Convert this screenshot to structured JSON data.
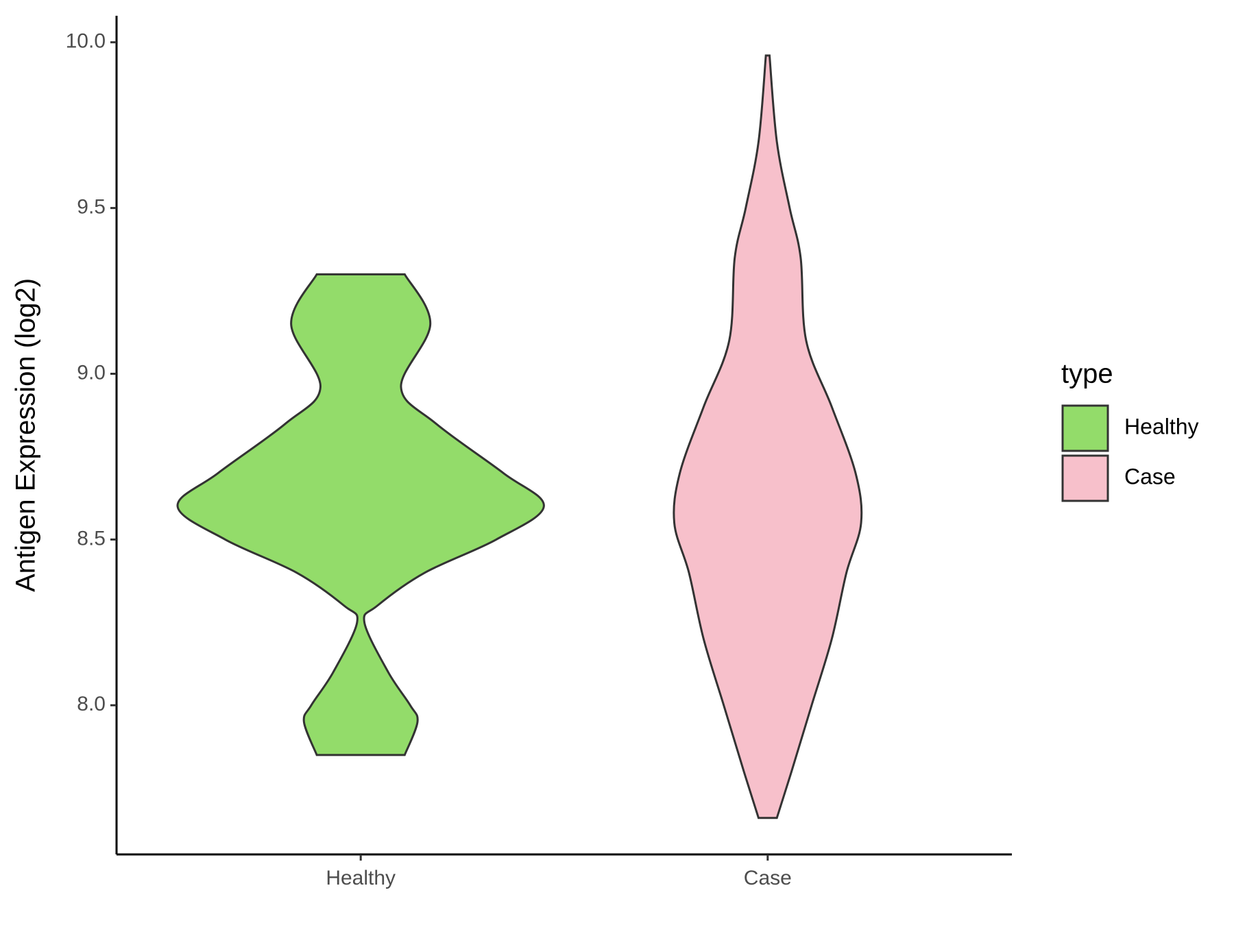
{
  "chart_data": {
    "type": "violin",
    "y_axis_label": "Antigen Expression (log2)",
    "categories": [
      "Healthy",
      "Case"
    ],
    "legend_title": "type",
    "ylim": [
      7.55,
      10.08
    ],
    "yticks": [
      {
        "value": 8,
        "label": "8.0"
      },
      8.5,
      {
        "value": 9,
        "label": "9.0"
      },
      9.5,
      {
        "value": 10,
        "label": "10.0"
      }
    ],
    "series": [
      {
        "name": "Healthy",
        "color": "#93dc6a",
        "y": [
          9.3,
          9.15,
          8.96,
          8.85,
          8.7,
          8.6,
          8.5,
          8.4,
          8.3,
          8.25,
          8.1,
          8.0,
          7.95,
          7.85
        ],
        "widths": [
          0.24,
          0.38,
          0.22,
          0.41,
          0.78,
          1.0,
          0.74,
          0.35,
          0.09,
          0.02,
          0.15,
          0.27,
          0.31,
          0.24
        ]
      },
      {
        "name": "Case",
        "color": "#f7c0cb",
        "y": [
          9.96,
          9.7,
          9.5,
          9.35,
          9.1,
          8.9,
          8.7,
          8.55,
          8.4,
          8.2,
          8.0,
          7.8,
          7.66
        ],
        "widths": [
          0.01,
          0.05,
          0.12,
          0.18,
          0.21,
          0.35,
          0.48,
          0.51,
          0.43,
          0.35,
          0.24,
          0.13,
          0.05
        ]
      }
    ]
  }
}
